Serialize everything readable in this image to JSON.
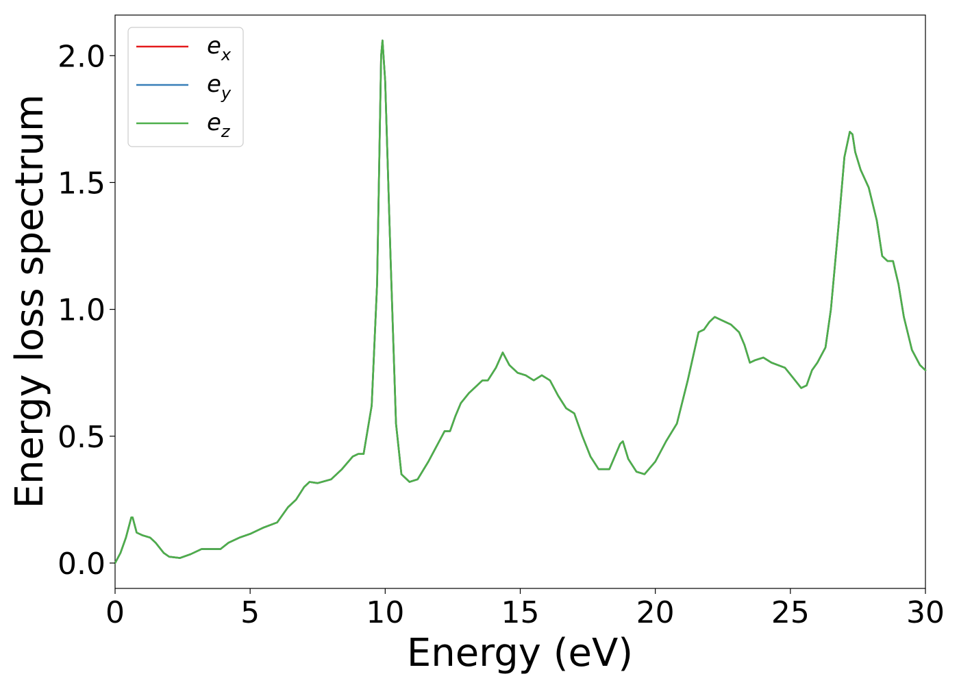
{
  "chart_data": {
    "type": "line",
    "title": "",
    "xlabel": "Energy (eV)",
    "ylabel": "Energy loss spectrum",
    "xlim": [
      0,
      30
    ],
    "ylim": [
      -0.1,
      2.16
    ],
    "xticks": [
      0,
      5,
      10,
      15,
      20,
      25,
      30
    ],
    "xtick_labels": [
      "0",
      "5",
      "10",
      "15",
      "20",
      "25",
      "30"
    ],
    "yticks": [
      0.0,
      0.5,
      1.0,
      1.5,
      2.0
    ],
    "ytick_labels": [
      "0.0",
      "0.5",
      "1.0",
      "1.5",
      "2.0"
    ],
    "grid": false,
    "legend_position": "top-left",
    "x": [
      0,
      0.2,
      0.4,
      0.6,
      0.65,
      0.8,
      1.0,
      1.3,
      1.5,
      1.8,
      2.0,
      2.4,
      2.8,
      3.2,
      3.6,
      3.9,
      4.2,
      4.6,
      5.0,
      5.5,
      6.0,
      6.4,
      6.7,
      7.0,
      7.2,
      7.5,
      8.0,
      8.4,
      8.8,
      9.0,
      9.2,
      9.5,
      9.7,
      9.85,
      9.9,
      10.0,
      10.2,
      10.4,
      10.6,
      10.9,
      11.2,
      11.6,
      12.0,
      12.2,
      12.4,
      12.6,
      12.8,
      13.1,
      13.3,
      13.6,
      13.8,
      14.1,
      14.35,
      14.6,
      14.9,
      15.2,
      15.5,
      15.8,
      16.1,
      16.4,
      16.7,
      17.0,
      17.3,
      17.6,
      17.9,
      18.3,
      18.7,
      18.8,
      19.0,
      19.3,
      19.6,
      20.0,
      20.4,
      20.8,
      21.2,
      21.6,
      21.8,
      22.0,
      22.2,
      22.4,
      22.8,
      23.1,
      23.3,
      23.5,
      23.7,
      24.0,
      24.3,
      24.8,
      25.1,
      25.4,
      25.6,
      25.8,
      26.0,
      26.3,
      26.5,
      26.8,
      27.0,
      27.2,
      27.3,
      27.4,
      27.6,
      27.9,
      28.2,
      28.4,
      28.6,
      28.8,
      29.0,
      29.2,
      29.5,
      29.8,
      30.0
    ],
    "series": [
      {
        "name": "e_x",
        "color": "#e41a1c",
        "values": [
          0.0,
          0.04,
          0.1,
          0.18,
          0.18,
          0.12,
          0.11,
          0.1,
          0.08,
          0.04,
          0.025,
          0.02,
          0.035,
          0.055,
          0.055,
          0.055,
          0.08,
          0.1,
          0.115,
          0.14,
          0.16,
          0.22,
          0.25,
          0.3,
          0.32,
          0.315,
          0.33,
          0.37,
          0.42,
          0.43,
          0.43,
          0.62,
          1.1,
          2.0,
          2.06,
          1.9,
          1.2,
          0.55,
          0.35,
          0.32,
          0.33,
          0.4,
          0.48,
          0.52,
          0.52,
          0.58,
          0.63,
          0.67,
          0.69,
          0.72,
          0.72,
          0.77,
          0.83,
          0.78,
          0.75,
          0.74,
          0.72,
          0.74,
          0.72,
          0.66,
          0.61,
          0.59,
          0.5,
          0.42,
          0.37,
          0.37,
          0.47,
          0.48,
          0.41,
          0.36,
          0.35,
          0.4,
          0.48,
          0.55,
          0.72,
          0.91,
          0.92,
          0.95,
          0.97,
          0.96,
          0.94,
          0.91,
          0.86,
          0.79,
          0.8,
          0.81,
          0.79,
          0.77,
          0.73,
          0.69,
          0.7,
          0.76,
          0.79,
          0.85,
          1.0,
          1.35,
          1.6,
          1.7,
          1.69,
          1.62,
          1.55,
          1.48,
          1.35,
          1.21,
          1.19,
          1.19,
          1.1,
          0.97,
          0.84,
          0.78,
          0.76
        ]
      },
      {
        "name": "e_y",
        "color": "#377eb8",
        "values": [
          0.0,
          0.04,
          0.1,
          0.18,
          0.18,
          0.12,
          0.11,
          0.1,
          0.08,
          0.04,
          0.025,
          0.02,
          0.035,
          0.055,
          0.055,
          0.055,
          0.08,
          0.1,
          0.115,
          0.14,
          0.16,
          0.22,
          0.25,
          0.3,
          0.32,
          0.315,
          0.33,
          0.37,
          0.42,
          0.43,
          0.43,
          0.62,
          1.1,
          2.0,
          2.06,
          1.9,
          1.2,
          0.55,
          0.35,
          0.32,
          0.33,
          0.4,
          0.48,
          0.52,
          0.52,
          0.58,
          0.63,
          0.67,
          0.69,
          0.72,
          0.72,
          0.77,
          0.83,
          0.78,
          0.75,
          0.74,
          0.72,
          0.74,
          0.72,
          0.66,
          0.61,
          0.59,
          0.5,
          0.42,
          0.37,
          0.37,
          0.47,
          0.48,
          0.41,
          0.36,
          0.35,
          0.4,
          0.48,
          0.55,
          0.72,
          0.91,
          0.92,
          0.95,
          0.97,
          0.96,
          0.94,
          0.91,
          0.86,
          0.79,
          0.8,
          0.81,
          0.79,
          0.77,
          0.73,
          0.69,
          0.7,
          0.76,
          0.79,
          0.85,
          1.0,
          1.35,
          1.6,
          1.7,
          1.69,
          1.62,
          1.55,
          1.48,
          1.35,
          1.21,
          1.19,
          1.19,
          1.1,
          0.97,
          0.84,
          0.78,
          0.76
        ]
      },
      {
        "name": "e_z",
        "color": "#4daf4a",
        "values": [
          0.0,
          0.04,
          0.1,
          0.18,
          0.18,
          0.12,
          0.11,
          0.1,
          0.08,
          0.04,
          0.025,
          0.02,
          0.035,
          0.055,
          0.055,
          0.055,
          0.08,
          0.1,
          0.115,
          0.14,
          0.16,
          0.22,
          0.25,
          0.3,
          0.32,
          0.315,
          0.33,
          0.37,
          0.42,
          0.43,
          0.43,
          0.62,
          1.1,
          2.0,
          2.06,
          1.9,
          1.2,
          0.55,
          0.35,
          0.32,
          0.33,
          0.4,
          0.48,
          0.52,
          0.52,
          0.58,
          0.63,
          0.67,
          0.69,
          0.72,
          0.72,
          0.77,
          0.83,
          0.78,
          0.75,
          0.74,
          0.72,
          0.74,
          0.72,
          0.66,
          0.61,
          0.59,
          0.5,
          0.42,
          0.37,
          0.37,
          0.47,
          0.48,
          0.41,
          0.36,
          0.35,
          0.4,
          0.48,
          0.55,
          0.72,
          0.91,
          0.92,
          0.95,
          0.97,
          0.96,
          0.94,
          0.91,
          0.86,
          0.79,
          0.8,
          0.81,
          0.79,
          0.77,
          0.73,
          0.69,
          0.7,
          0.76,
          0.79,
          0.85,
          1.0,
          1.35,
          1.6,
          1.7,
          1.69,
          1.62,
          1.55,
          1.48,
          1.35,
          1.21,
          1.19,
          1.19,
          1.1,
          0.97,
          0.84,
          0.78,
          0.76
        ]
      }
    ],
    "legend": [
      {
        "base": "e",
        "sub": "x",
        "color": "#e41a1c"
      },
      {
        "base": "e",
        "sub": "y",
        "color": "#377eb8"
      },
      {
        "base": "e",
        "sub": "z",
        "color": "#4daf4a"
      }
    ]
  }
}
